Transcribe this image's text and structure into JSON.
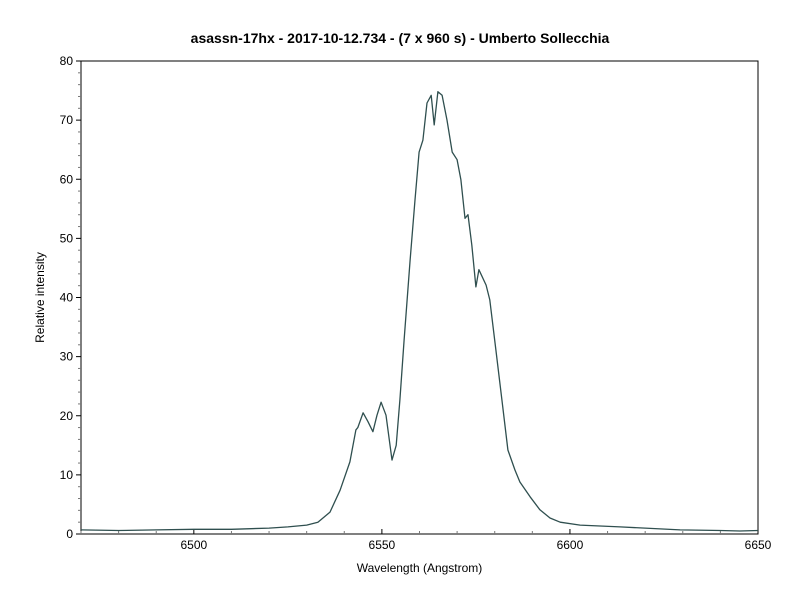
{
  "chart_data": {
    "type": "line",
    "title": "asassn-17hx  - 2017-10-12.734 - (7 x 960 s)  - Umberto Sollecchia",
    "xlabel": "Wavelength (Angstrom)",
    "ylabel": "Relative intensity",
    "xlim": [
      6470,
      6650
    ],
    "ylim": [
      0,
      80
    ],
    "x_ticks": [
      6500,
      6550,
      6600,
      6650
    ],
    "y_ticks": [
      0,
      10,
      20,
      30,
      40,
      50,
      60,
      70,
      80
    ],
    "x_tick_labels": [
      "6500",
      "6550",
      "6600",
      "6650"
    ],
    "y_tick_labels": [
      "0",
      "10",
      "20",
      "30",
      "40",
      "50",
      "60",
      "70",
      "80"
    ],
    "x_minor_step": 10,
    "y_minor_step": 2,
    "grid": false,
    "legend": null,
    "line_color": "#2f4f4f",
    "series": [
      {
        "name": "asassn-17hx spectrum",
        "x": [
          6470,
          6480,
          6490,
          6500,
          6510,
          6520,
          6525,
          6530,
          6533,
          6536.2,
          6538.9,
          6541.5,
          6543.1,
          6543.6,
          6545,
          6546.3,
          6547.6,
          6548.7,
          6549.8,
          6551.1,
          6552.7,
          6553.8,
          6554.8,
          6555.9,
          6557.5,
          6558.8,
          6559.9,
          6560.9,
          6562,
          6563.1,
          6563.9,
          6564.9,
          6566,
          6567.3,
          6568.7,
          6570,
          6571,
          6572.1,
          6572.9,
          6573.9,
          6575,
          6575.8,
          6577.7,
          6578.7,
          6580.3,
          6581.9,
          6583.5,
          6585.4,
          6586.7,
          6589.4,
          6592,
          6594.7,
          6597.4,
          6602.7,
          6613.3,
          6620,
          6629.3,
          6640,
          6645.2,
          6650
        ],
        "values": [
          0.7,
          0.6,
          0.7,
          0.8,
          0.8,
          1.0,
          1.2,
          1.5,
          2.0,
          3.7,
          7.4,
          12.2,
          17.6,
          18.0,
          20.5,
          19.0,
          17.3,
          20.1,
          22.3,
          20.1,
          12.5,
          15.0,
          22.7,
          32.8,
          46.3,
          56.5,
          64.6,
          66.6,
          72.9,
          74.2,
          69.2,
          74.8,
          74.2,
          70.0,
          64.6,
          63.3,
          59.9,
          53.4,
          54.0,
          48.9,
          41.8,
          44.7,
          42.1,
          39.6,
          31.1,
          22.7,
          14.2,
          10.8,
          8.8,
          6.3,
          4.1,
          2.7,
          2.0,
          1.5,
          1.2,
          1.0,
          0.7,
          0.6,
          0.5,
          0.6
        ]
      }
    ]
  }
}
